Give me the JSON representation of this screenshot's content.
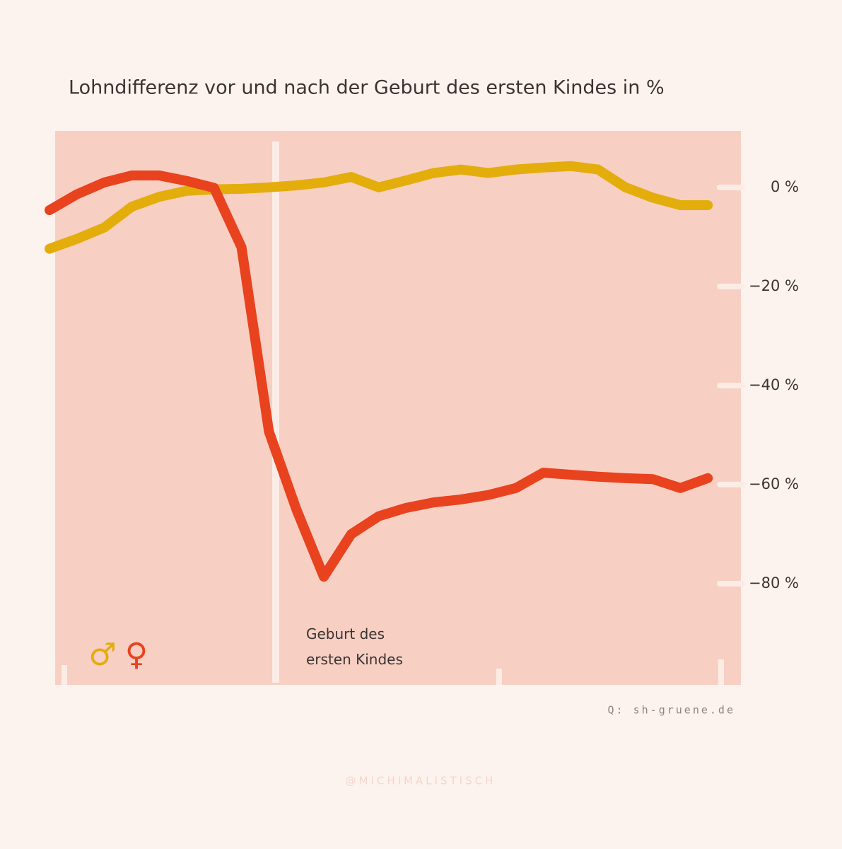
{
  "chart_data": {
    "type": "line",
    "title": "Lohndifferenz vor und nach der Geburt des ersten Kindes in %",
    "annotation": "Geburt des ersten Kindes",
    "source": "Q: sh-gruene.de",
    "credit": "@MICHIMALISTISCH",
    "categories": [
      null,
      null,
      null,
      null,
      null,
      null,
      null,
      null,
      null,
      null,
      null,
      null,
      null,
      null,
      null,
      null,
      null,
      null,
      null,
      null,
      null,
      null,
      null,
      null,
      null
    ],
    "series": [
      {
        "name": "♂",
        "color": "#e3ad0c",
        "values": [
          -12.4,
          -10.4,
          -8.1,
          -3.9,
          -1.9,
          -0.7,
          -0.4,
          -0.3,
          0,
          0.4,
          1.0,
          2.1,
          0,
          1.4,
          2.9,
          3.6,
          2.9,
          3.6,
          4.0,
          4.3,
          3.6,
          0,
          -2.1,
          -3.6,
          -3.6
        ]
      },
      {
        "name": "♀",
        "color": "#e8421e",
        "values": [
          -4.6,
          -1.4,
          1.0,
          2.4,
          2.4,
          1.3,
          -0.1,
          -12.1,
          -49.3,
          -65,
          -78.6,
          -70,
          -66.4,
          -64.7,
          -63.6,
          -63,
          -62.1,
          -60.7,
          -57.6,
          -58,
          -58.4,
          -58.7,
          -58.9,
          -60.7,
          -58.7
        ]
      }
    ],
    "ylim": [
      -100,
      11.4
    ],
    "yticks": [
      {
        "value": 0,
        "label": "0 %"
      },
      {
        "value": -20,
        "label": "−20 %"
      },
      {
        "value": -40,
        "label": "−40 %"
      },
      {
        "value": -60,
        "label": "−60 %"
      },
      {
        "value": -80,
        "label": "−80 %"
      }
    ]
  }
}
